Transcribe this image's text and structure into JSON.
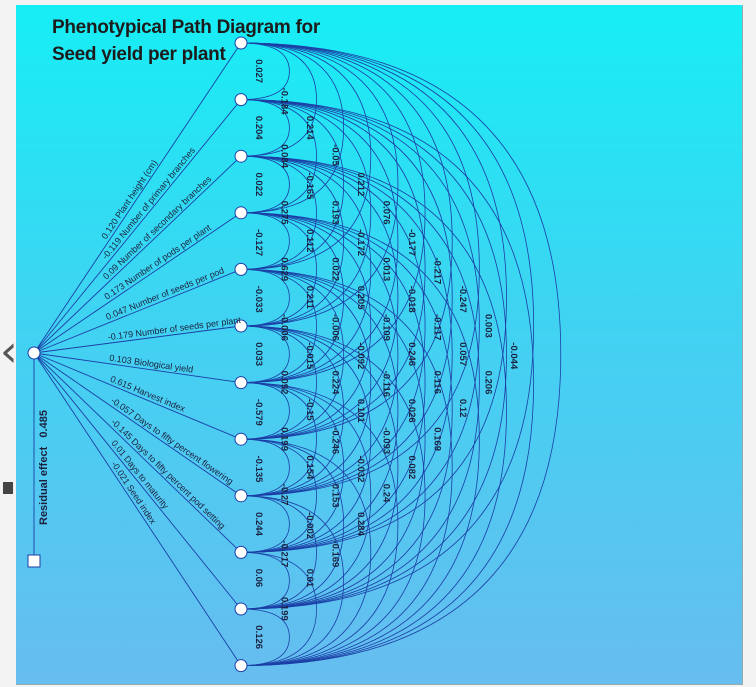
{
  "title": [
    "Phenotypical Path Diagram for",
    "Seed yield per plant"
  ],
  "residual_label": "Residual effect",
  "residual_value": "0.485",
  "colors": {
    "line": "#1b3fa6",
    "bg_top": "#16eef5",
    "bg_bottom": "#67bdf0",
    "text": "#1a2240"
  },
  "traits": [
    {
      "name": "Plant height (cm)",
      "direct": "0.120"
    },
    {
      "name": "Number of primary branches",
      "direct": "-0.119"
    },
    {
      "name": "Number of secondary branches",
      "direct": "0.09"
    },
    {
      "name": "Number of pods per plant",
      "direct": "0.173"
    },
    {
      "name": "Number of seeds per pod",
      "direct": "0.047"
    },
    {
      "name": "Number of seeds per plant",
      "direct": "-0.179"
    },
    {
      "name": "Biological yield",
      "direct": "0.103"
    },
    {
      "name": "Harvest index",
      "direct": "0.615"
    },
    {
      "name": "Days to fifty percent flowering",
      "direct": "-0.057"
    },
    {
      "name": "Days to fifty percent pod setting",
      "direct": "-0.145"
    },
    {
      "name": "Days to maturity",
      "direct": "0.01"
    },
    {
      "name": "Seed index",
      "direct": "-0.021"
    }
  ],
  "correlations": [
    [
      "0.027",
      "0.204",
      "0.022",
      "-0.127",
      "-0.033",
      "0.033",
      "-0.579",
      "-0.135",
      "0.244",
      "0.06",
      "0.126"
    ],
    [
      "-0.184",
      "0.084",
      "0.275",
      "0.629",
      "-0.006",
      "0.092",
      "0.199",
      "-0.27",
      "-0.217",
      "0.199"
    ],
    [
      "0.214",
      "-0.165",
      "0.112",
      "0.211",
      "-0.015",
      "-0.15",
      "0.154",
      "-0.002",
      "0.01"
    ],
    [
      "-0.05",
      "0.193",
      "0.022",
      "-0.006",
      "0.224",
      "-0.246",
      "0.153",
      "-0.169"
    ],
    [
      "0.212",
      "-0.172",
      "0.205",
      "-0.092",
      "0.101",
      "-0.032",
      "0.284"
    ],
    [
      "0.076",
      "0.013",
      "-0.109",
      "-0.116",
      "-0.093",
      "0.24"
    ],
    [
      "-0.177",
      "-0.018",
      "0.246",
      "0.026",
      "0.082"
    ],
    [
      "-0.217",
      "-0.117",
      "0.116",
      "0.169"
    ],
    [
      "-0.247",
      "0.057",
      "0.12"
    ],
    [
      "0.003",
      "0.206"
    ],
    [
      "-0.044"
    ]
  ]
}
